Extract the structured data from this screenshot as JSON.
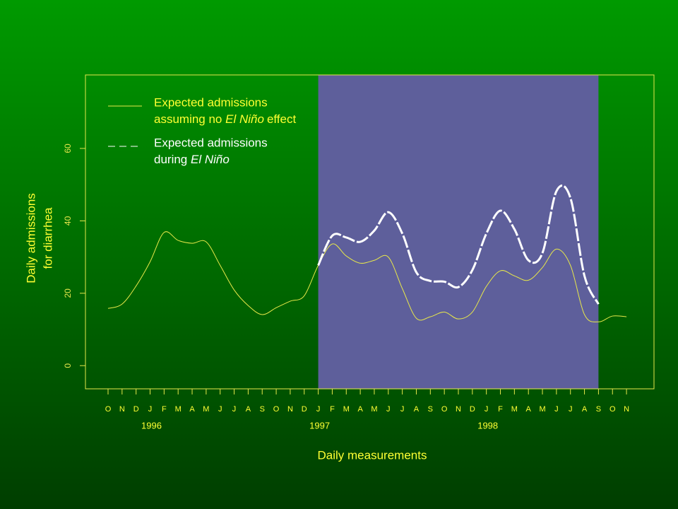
{
  "chart_data": {
    "type": "line",
    "x_label": "Daily measurements",
    "y_label": [
      "Daily admissions",
      "for diarrhea"
    ],
    "categories": [
      "O",
      "N",
      "D",
      "J",
      "F",
      "M",
      "A",
      "M",
      "J",
      "J",
      "A",
      "S",
      "O",
      "N",
      "D",
      "J",
      "F",
      "M",
      "A",
      "M",
      "J",
      "J",
      "A",
      "S",
      "O",
      "N",
      "D",
      "J",
      "F",
      "M",
      "A",
      "M",
      "J",
      "J",
      "A",
      "S",
      "O",
      "N"
    ],
    "year_labels": [
      "1996",
      "1997",
      "1998"
    ],
    "ylim": [
      -6.4,
      80.3
    ],
    "yticks": [
      0,
      20,
      40,
      60
    ],
    "shade_color": "#5e5f9b",
    "series": [
      {
        "legend_text": [
          "Expected admissions",
          "assuming no ",
          "El Niño",
          "effect"
        ],
        "color": "#e8e84a",
        "dash": false,
        "values": [
          15.8,
          17,
          22,
          28.7,
          36.8,
          34.6,
          33.8,
          34.2,
          27.7,
          20.9,
          16.6,
          14.1,
          16,
          17.8,
          19.3,
          27.7,
          33.6,
          30.3,
          28.3,
          29.1,
          30,
          21.3,
          13.1,
          13.5,
          14.8,
          12.9,
          14.8,
          21.9,
          26.2,
          24.8,
          23.6,
          27.1,
          32.2,
          27.7,
          14.1,
          12.1,
          13.7,
          13.5
        ]
      },
      {
        "legend_text": [
          "Expected admissions",
          "during ",
          "El Niño"
        ],
        "color": "#ffffff",
        "dash": true,
        "values": [
          null,
          null,
          null,
          null,
          null,
          null,
          null,
          null,
          null,
          null,
          null,
          null,
          null,
          null,
          null,
          27.7,
          35.9,
          35.4,
          34.2,
          37.3,
          42.4,
          36.5,
          25.8,
          23.4,
          23.2,
          21.7,
          26.4,
          36.5,
          42.8,
          37.7,
          29.1,
          31.1,
          48.2,
          46.3,
          24.8,
          17,
          null,
          null
        ]
      }
    ]
  }
}
